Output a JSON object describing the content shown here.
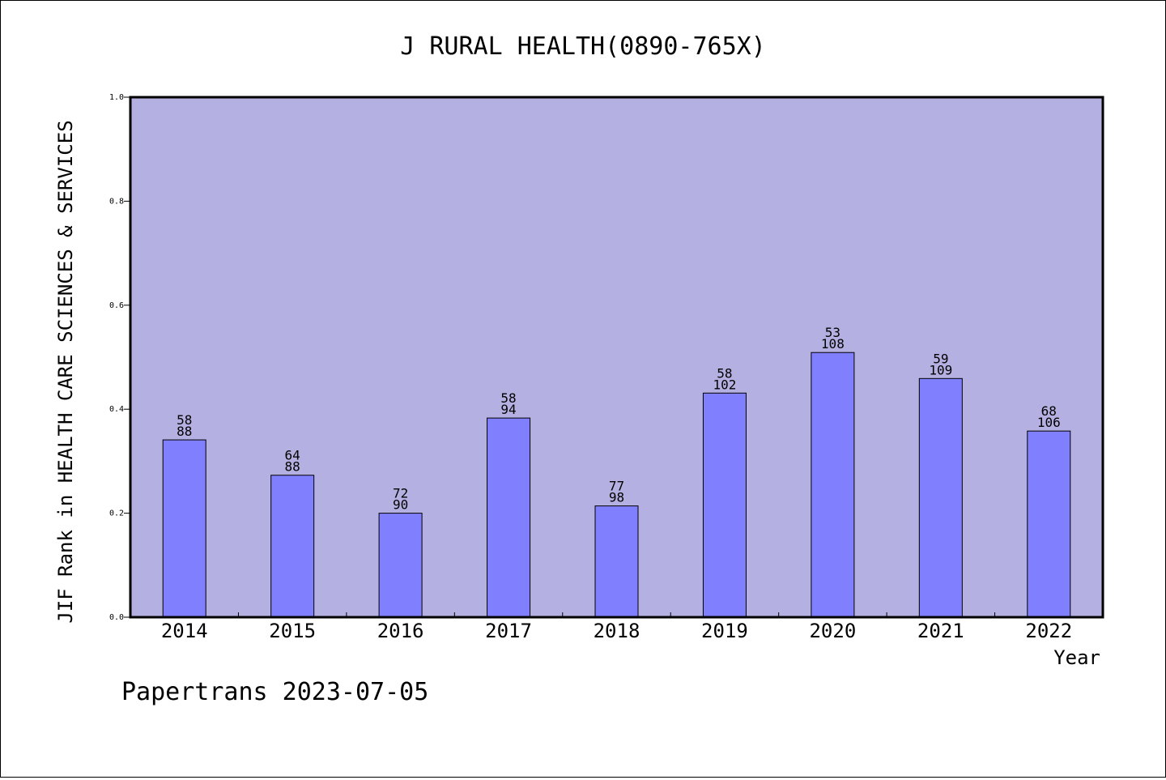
{
  "chart_data": {
    "type": "bar",
    "title": "J RURAL HEALTH(0890-765X)",
    "xlabel": "Year",
    "ylabel": "JIF Rank in HEALTH CARE SCIENCES & SERVICES",
    "ylim": [
      0,
      1.0
    ],
    "yticks": [
      "0.0",
      "0.2",
      "0.4",
      "0.6",
      "0.8",
      "1.0"
    ],
    "grid": false,
    "categories": [
      "2014",
      "2015",
      "2016",
      "2017",
      "2018",
      "2019",
      "2020",
      "2021",
      "2022"
    ],
    "values": [
      0.341,
      0.273,
      0.2,
      0.383,
      0.214,
      0.431,
      0.509,
      0.459,
      0.358
    ],
    "rank": [
      "58",
      "64",
      "72",
      "58",
      "77",
      "58",
      "53",
      "59",
      "68"
    ],
    "total": [
      "88",
      "88",
      "90",
      "94",
      "98",
      "102",
      "108",
      "109",
      "106"
    ],
    "colors": {
      "plot_background": "#b5b0e2",
      "bar_fill": "#8080ff",
      "bar_stroke": "#000000"
    }
  },
  "footer": {
    "text": "Papertrans 2023-07-05"
  }
}
